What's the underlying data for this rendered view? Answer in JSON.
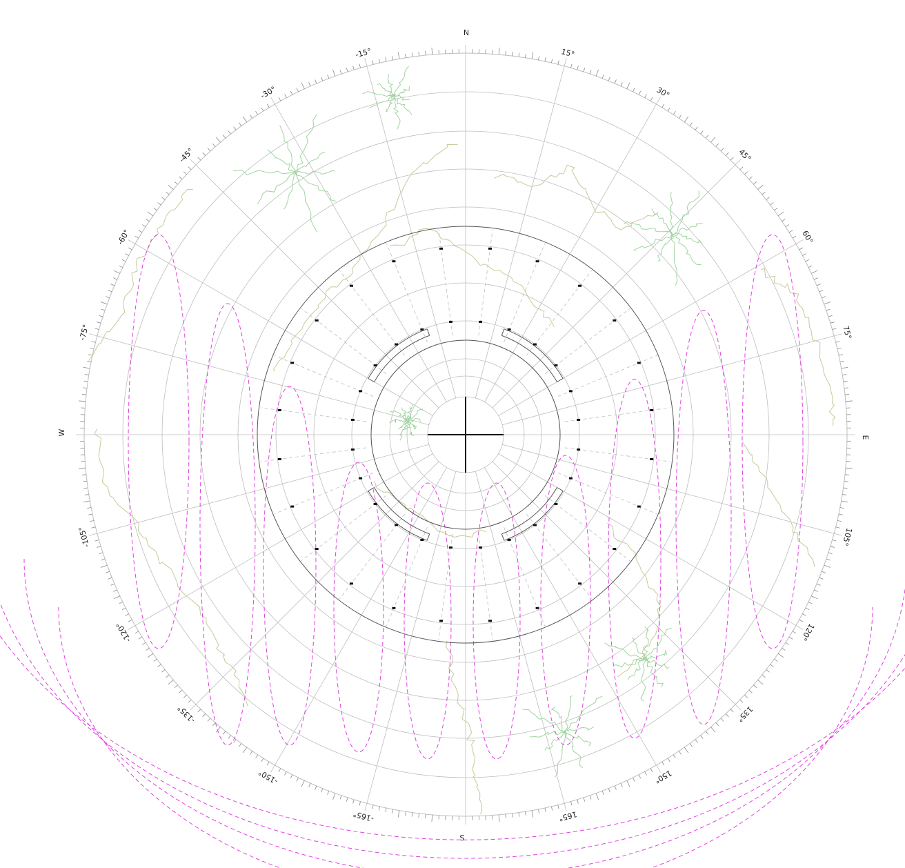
{
  "map": {
    "projection": "polar azimuthal",
    "cardinals": {
      "north": "N",
      "south": "S",
      "east": "E",
      "west": "W"
    },
    "bearing_labels": [
      {
        "deg": -15,
        "text": "-15°"
      },
      {
        "deg": 15,
        "text": "15°"
      },
      {
        "deg": -30,
        "text": "-30°"
      },
      {
        "deg": 30,
        "text": "30°"
      },
      {
        "deg": -45,
        "text": "-45°"
      },
      {
        "deg": 45,
        "text": "45°"
      },
      {
        "deg": -60,
        "text": "-60°"
      },
      {
        "deg": 60,
        "text": "60°"
      },
      {
        "deg": -75,
        "text": "-75°"
      },
      {
        "deg": 75,
        "text": "75°"
      },
      {
        "deg": -105,
        "text": "-105°"
      },
      {
        "deg": 105,
        "text": "105°"
      },
      {
        "deg": -120,
        "text": "-120°"
      },
      {
        "deg": 120,
        "text": "120°"
      },
      {
        "deg": -135,
        "text": "-135°"
      },
      {
        "deg": 135,
        "text": "135°"
      },
      {
        "deg": -150,
        "text": "-150°"
      },
      {
        "deg": 150,
        "text": "150°"
      },
      {
        "deg": -165,
        "text": "-165°"
      },
      {
        "deg": 165,
        "text": "165°"
      }
    ],
    "colors": {
      "grid": "#bdbdbd",
      "ring_dark": "#555555",
      "coast": "#c8c89a",
      "vegetation": "#9fd49f",
      "magenta": "#e040e0",
      "ticks": "#888888",
      "crosshair": "#111111"
    }
  }
}
